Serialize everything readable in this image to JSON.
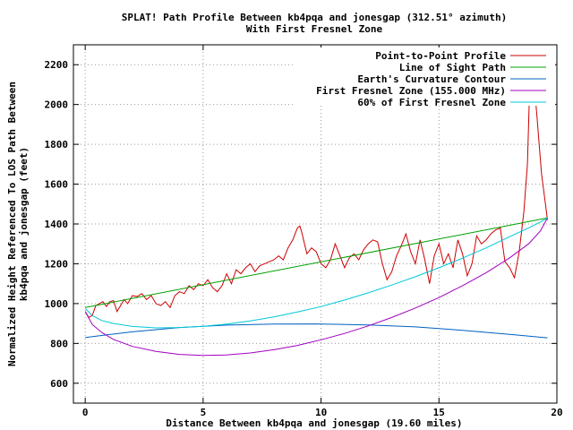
{
  "chart_data": {
    "type": "line",
    "title": "SPLAT! Path Profile Between kb4pqa and jonesgap (312.51° azimuth)",
    "subtitle": "With First Fresnel Zone",
    "xlabel": "Distance Between kb4pqa and jonesgap (19.60 miles)",
    "ylabel_line1": "Normalized Height Referenced To LOS Path Between",
    "ylabel_line2": "kb4pqa and jonesgap (feet)",
    "xlim": [
      -0.5,
      20
    ],
    "ylim": [
      500,
      2300
    ],
    "x_ticks": [
      0,
      5,
      10,
      15,
      20
    ],
    "y_ticks": [
      600,
      800,
      1000,
      1200,
      1400,
      1600,
      1800,
      2000,
      2200
    ],
    "grid": true,
    "legend_position": "top-right",
    "series": [
      {
        "name": "Point-to-Point Profile",
        "color": "#cc0000",
        "x": [
          0,
          0.15,
          0.3,
          0.45,
          0.6,
          0.75,
          0.9,
          1.05,
          1.2,
          1.35,
          1.5,
          1.65,
          1.8,
          2.0,
          2.2,
          2.4,
          2.6,
          2.8,
          3.0,
          3.2,
          3.4,
          3.6,
          3.8,
          4.0,
          4.2,
          4.4,
          4.6,
          4.8,
          5.0,
          5.2,
          5.4,
          5.6,
          5.8,
          6.0,
          6.2,
          6.4,
          6.6,
          6.8,
          7.0,
          7.2,
          7.4,
          7.6,
          7.8,
          8.0,
          8.2,
          8.4,
          8.6,
          8.8,
          9.0,
          9.1,
          9.2,
          9.3,
          9.4,
          9.6,
          9.8,
          10.0,
          10.2,
          10.4,
          10.6,
          10.8,
          11.0,
          11.2,
          11.4,
          11.6,
          11.8,
          12.0,
          12.2,
          12.4,
          12.6,
          12.8,
          13.0,
          13.2,
          13.4,
          13.6,
          13.8,
          14.0,
          14.2,
          14.4,
          14.6,
          14.8,
          15.0,
          15.2,
          15.4,
          15.6,
          15.8,
          16.0,
          16.2,
          16.4,
          16.6,
          16.8,
          17.0,
          17.2,
          17.4,
          17.6,
          17.8,
          18.0,
          18.2,
          18.4,
          18.6,
          18.75,
          18.85,
          18.95,
          19.05,
          19.15,
          19.25,
          19.35,
          19.45,
          19.6
        ],
        "y": [
          960,
          930,
          940,
          990,
          1000,
          1010,
          985,
          1010,
          1015,
          960,
          990,
          1020,
          1000,
          1040,
          1035,
          1050,
          1020,
          1040,
          1000,
          990,
          1010,
          980,
          1040,
          1060,
          1050,
          1090,
          1070,
          1100,
          1090,
          1120,
          1080,
          1060,
          1090,
          1150,
          1100,
          1170,
          1150,
          1180,
          1200,
          1160,
          1190,
          1200,
          1210,
          1220,
          1240,
          1220,
          1280,
          1320,
          1380,
          1390,
          1350,
          1300,
          1250,
          1280,
          1260,
          1200,
          1180,
          1220,
          1300,
          1240,
          1180,
          1230,
          1250,
          1220,
          1270,
          1300,
          1320,
          1310,
          1200,
          1120,
          1160,
          1240,
          1290,
          1350,
          1260,
          1200,
          1320,
          1220,
          1100,
          1240,
          1300,
          1200,
          1250,
          1180,
          1320,
          1250,
          1140,
          1200,
          1340,
          1300,
          1320,
          1350,
          1370,
          1380,
          1210,
          1180,
          1130,
          1260,
          1460,
          1700,
          2100,
          2230,
          2080,
          1950,
          1800,
          1650,
          1560,
          1420
        ],
        "approximate": true
      },
      {
        "name": "Line of Sight Path",
        "color": "#00a000",
        "x": [
          0,
          19.6
        ],
        "y": [
          980,
          1430
        ]
      },
      {
        "name": "Earth's Curvature Contour",
        "color": "#0060c0",
        "x": [
          0,
          2,
          4,
          6,
          8,
          9.8,
          12,
          14,
          16,
          18,
          19.6
        ],
        "y": [
          830,
          858,
          880,
          892,
          897,
          898,
          893,
          883,
          866,
          845,
          828
        ]
      },
      {
        "name": "First Fresnel Zone (155.000 MHz)",
        "color": "#a000c0",
        "x": [
          0,
          0.3,
          0.7,
          1.2,
          2,
          3,
          4,
          5,
          6,
          7,
          8,
          9,
          10,
          11,
          12,
          13,
          14,
          15,
          16,
          17,
          18,
          18.8,
          19.3,
          19.6
        ],
        "y": [
          960,
          895,
          855,
          820,
          785,
          760,
          745,
          740,
          742,
          752,
          768,
          790,
          818,
          850,
          888,
          930,
          978,
          1030,
          1090,
          1155,
          1230,
          1300,
          1365,
          1430
        ]
      },
      {
        "name": "60% of First Fresnel Zone",
        "color": "#00c8d8",
        "x": [
          0,
          0.3,
          0.7,
          1.2,
          2,
          3,
          4,
          5,
          6,
          7,
          8,
          9,
          10,
          11,
          12,
          13,
          14,
          15,
          16,
          17,
          18,
          18.8,
          19.3,
          19.6
        ],
        "y": [
          975,
          940,
          915,
          900,
          885,
          878,
          880,
          886,
          897,
          913,
          933,
          958,
          985,
          1018,
          1054,
          1093,
          1135,
          1180,
          1228,
          1280,
          1336,
          1380,
          1410,
          1430
        ]
      }
    ]
  }
}
